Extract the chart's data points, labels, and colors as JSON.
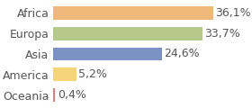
{
  "categories": [
    "Africa",
    "Europa",
    "Asia",
    "America",
    "Oceania"
  ],
  "values": [
    36.1,
    33.7,
    24.6,
    5.2,
    0.4
  ],
  "bar_colors": [
    "#f0b87a",
    "#b5c98a",
    "#7b93c4",
    "#f5d47a",
    "#e87878"
  ],
  "labels": [
    "36,1%",
    "33,7%",
    "24,6%",
    "5,2%",
    "0,4%"
  ],
  "xlim": [
    0,
    42
  ],
  "background_color": "#ffffff",
  "label_fontsize": 9,
  "tick_fontsize": 9
}
